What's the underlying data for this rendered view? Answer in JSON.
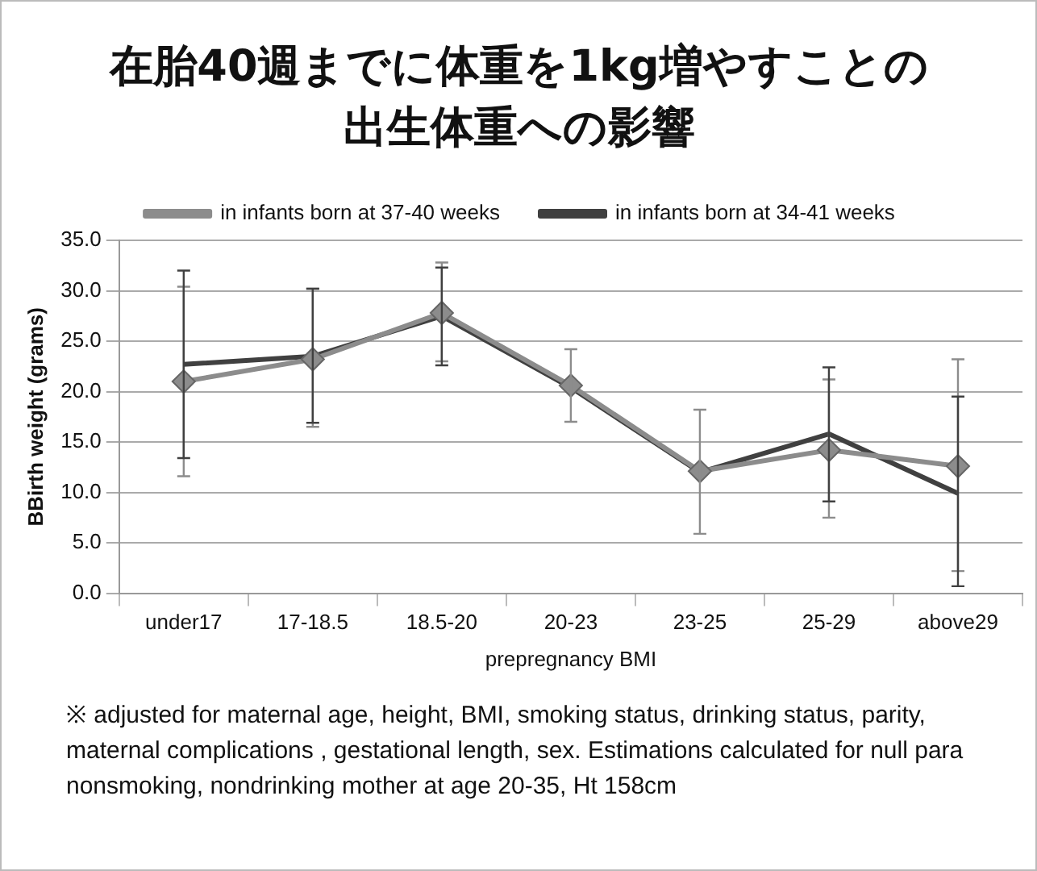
{
  "chart_data": {
    "type": "line",
    "title": "在胎40週までに体重を1kg増やすことの出生体重への影響",
    "xlabel": "prepregnancy BMI",
    "ylabel": "BBirth weight (grams)",
    "categories": [
      "under17",
      "17-18.5",
      "18.5-20",
      "20-23",
      "23-25",
      "25-29",
      "above29"
    ],
    "series": [
      {
        "name": "in infants born at 37-40 weeks",
        "color": "#8c8c8c",
        "marker": "diamond",
        "values": [
          21.0,
          23.2,
          27.8,
          20.6,
          12.1,
          14.2,
          12.6
        ],
        "errors": [
          [
            11.6,
            30.4
          ],
          [
            16.5,
            30.2
          ],
          [
            23.0,
            32.8
          ],
          [
            17.0,
            24.2
          ],
          [
            5.9,
            18.2
          ],
          [
            7.5,
            21.2
          ],
          [
            2.2,
            23.2
          ]
        ]
      },
      {
        "name": "in infants born at 34-41 weeks",
        "color": "#404040",
        "marker": "none",
        "values": [
          22.7,
          23.5,
          27.5,
          20.4,
          12.0,
          15.8,
          9.9
        ],
        "errors": [
          [
            13.4,
            32.0
          ],
          [
            16.9,
            30.2
          ],
          [
            22.6,
            32.3
          ],
          null,
          null,
          [
            9.1,
            22.4
          ],
          [
            0.7,
            19.5
          ]
        ]
      }
    ],
    "ylim": [
      0,
      35
    ],
    "yticks": [
      {
        "value": 0,
        "label": "0.0"
      },
      {
        "value": 5,
        "label": "5.0"
      },
      {
        "value": 10,
        "label": "10.0"
      },
      {
        "value": 15,
        "label": "15.0"
      },
      {
        "value": 20,
        "label": "20.0"
      },
      {
        "value": 25,
        "label": "25.0"
      },
      {
        "value": 30,
        "label": "30.0"
      },
      {
        "value": 35,
        "label": "35.0"
      }
    ],
    "grid": "y",
    "legend": "top",
    "line_style": "solid",
    "annotations": [
      "※ adjusted for maternal age, height, BMI, smoking status, drinking status, parity, maternal complications , gestational  length, sex. Estimations calculated for null para nonsmoking, nondrinking mother at age 20-35, Ht 158cm"
    ]
  }
}
